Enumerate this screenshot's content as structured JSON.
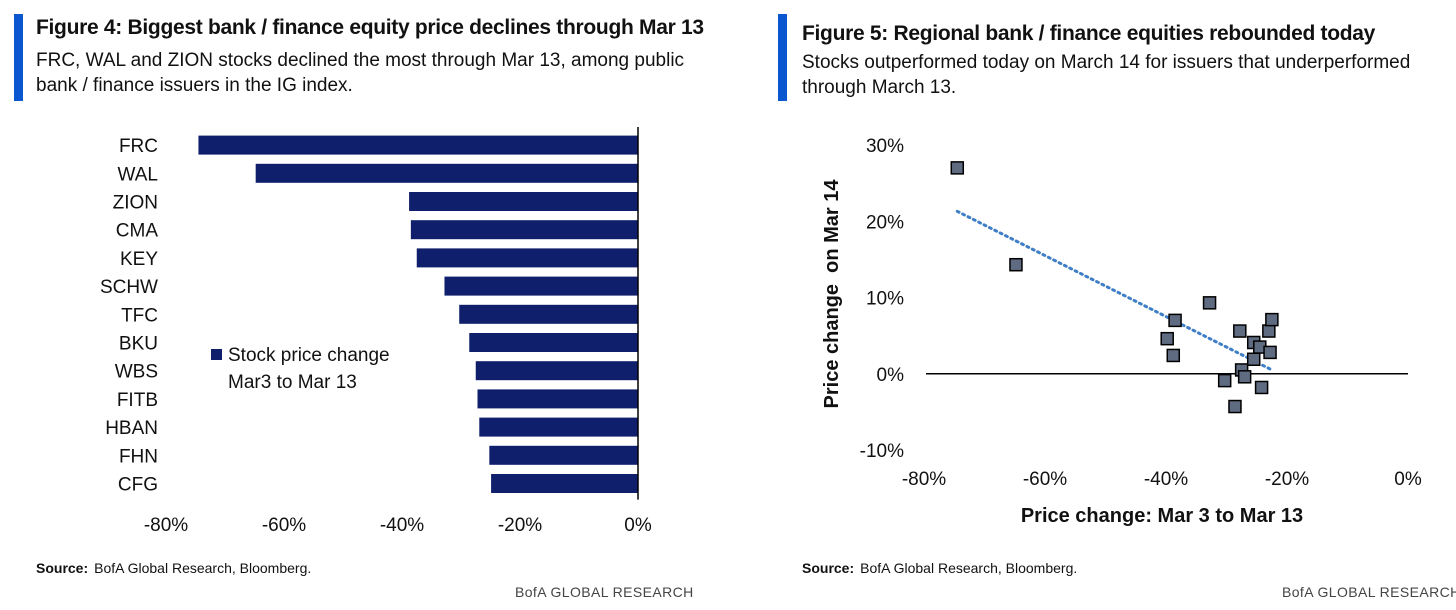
{
  "figures": {
    "left": {
      "title": "Figure 4: Biggest bank / finance equity price declines through Mar 13",
      "subtitle": "FRC, WAL and ZION stocks declined the most through Mar 13, among public bank / finance issuers in the IG index.",
      "source_label": "Source:",
      "source_text": "BofA Global Research, Bloomberg.",
      "brand": "BofA GLOBAL RESEARCH"
    },
    "right": {
      "title": "Figure 5: Regional bank / finance equities rebounded today",
      "subtitle": "Stocks outperformed today on March 14 for issuers that underperformed through March 13.",
      "source_label": "Source:",
      "source_text": "BofA Global Research, Bloomberg.",
      "brand": "BofA GLOBAL RESEARCH"
    }
  },
  "colors": {
    "bar": "#0f1f6b",
    "marker_fill": "#5f6b80",
    "trend": "#3f7fc8",
    "accent": "#0b57d0"
  },
  "chart_data": [
    {
      "type": "bar",
      "orientation": "horizontal",
      "categories": [
        "FRC",
        "WAL",
        "ZION",
        "CMA",
        "KEY",
        "SCHW",
        "TFC",
        "BKU",
        "WBS",
        "FITB",
        "HBAN",
        "FHN",
        "CFG"
      ],
      "series": [
        {
          "name": "Stock price change Mar3 to Mar 13",
          "values": [
            -74.5,
            -64.8,
            -38.8,
            -38.5,
            -37.5,
            -32.8,
            -30.3,
            -28.6,
            -27.5,
            -27.2,
            -26.9,
            -25.2,
            -24.9
          ]
        }
      ],
      "legend_line1": "Stock price change",
      "legend_line2": "Mar3 to Mar 13",
      "xlim": [
        -80,
        0
      ],
      "xticks": [
        "-80%",
        "-60%",
        "-40%",
        "-20%",
        "0%"
      ],
      "xtick_values": [
        -80,
        -60,
        -40,
        -20,
        0
      ]
    },
    {
      "type": "scatter",
      "xlabel": "Price change: Mar 3 to Mar 13",
      "ylabel": "Price change  on Mar 14",
      "xlim": [
        -80,
        0
      ],
      "ylim": [
        -10,
        30
      ],
      "xticks": [
        "-80%",
        "-60%",
        "-40%",
        "-20%",
        "0%"
      ],
      "xtick_values": [
        -80,
        -60,
        -40,
        -20,
        0
      ],
      "yticks": [
        "30%",
        "20%",
        "10%",
        "0%",
        "-10%"
      ],
      "ytick_values": [
        30,
        20,
        10,
        0,
        -10
      ],
      "points": [
        {
          "x": -74.5,
          "y": 27.0
        },
        {
          "x": -64.8,
          "y": 14.3
        },
        {
          "x": -38.8,
          "y": 2.4
        },
        {
          "x": -38.5,
          "y": 7.0
        },
        {
          "x": -39.8,
          "y": 4.6
        },
        {
          "x": -32.8,
          "y": 9.3
        },
        {
          "x": -30.3,
          "y": -0.9
        },
        {
          "x": -28.6,
          "y": -4.3
        },
        {
          "x": -27.8,
          "y": 5.6
        },
        {
          "x": -27.5,
          "y": 0.5
        },
        {
          "x": -27.0,
          "y": -0.4
        },
        {
          "x": -25.5,
          "y": 4.1
        },
        {
          "x": -25.5,
          "y": 1.9
        },
        {
          "x": -24.5,
          "y": 3.5
        },
        {
          "x": -24.2,
          "y": -1.8
        },
        {
          "x": -23.0,
          "y": 5.6
        },
        {
          "x": -22.8,
          "y": 2.8
        },
        {
          "x": -22.5,
          "y": 7.1
        }
      ],
      "trendline": {
        "x": [
          -74.5,
          -22.5
        ],
        "y": [
          21.3,
          0.5
        ]
      }
    }
  ]
}
